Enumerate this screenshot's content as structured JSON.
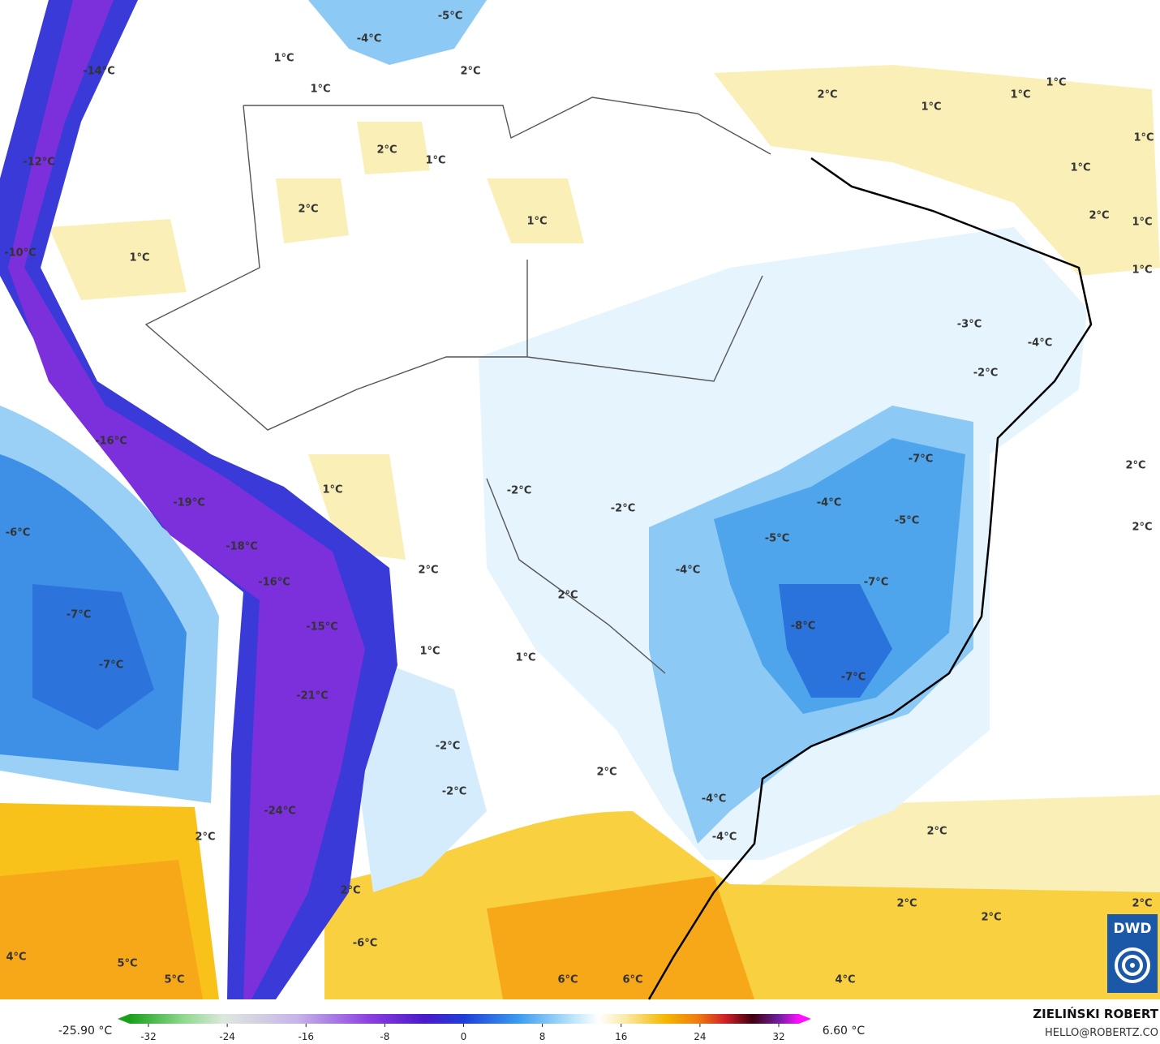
{
  "map": {
    "labels": [
      "-5°C",
      "-4°C",
      "1°C",
      "2°C",
      "1°C",
      "-14°C",
      "2°C",
      "1°C",
      "1°C",
      "1°C",
      "2°C",
      "1°C",
      "-12°C",
      "1°C",
      "1°C",
      "2°C",
      "1°C",
      "2°C",
      "1°C",
      "-10°C",
      "1°C",
      "1°C",
      "-3°C",
      "-4°C",
      "-2°C",
      "-16°C",
      "-7°C",
      "2°C",
      "1°C",
      "-2°C",
      "-19°C",
      "-2°C",
      "-4°C",
      "-5°C",
      "-6°C",
      "2°C",
      "-5°C",
      "-18°C",
      "-4°C",
      "2°C",
      "-16°C",
      "-7°C",
      "2°C",
      "-7°C",
      "-15°C",
      "-8°C",
      "1°C",
      "1°C",
      "-7°C",
      "-7°C",
      "-21°C",
      "-2°C",
      "2°C",
      "-2°C",
      "-4°C",
      "-24°C",
      "2°C",
      "2°C",
      "-4°C",
      "2°C",
      "2°C",
      "2°C",
      "2°C",
      "-6°C",
      "4°C",
      "5°C",
      "5°C",
      "6°C",
      "6°C",
      "4°C"
    ]
  },
  "colorbar": {
    "min_label": "-25.90 °C",
    "max_label": "6.60 °C",
    "ticks": [
      -32,
      -24,
      -16,
      -8,
      0,
      8,
      16,
      24,
      32
    ]
  },
  "credit": {
    "author": "ZIELIŃSKI ROBERT",
    "email": "HELLO@ROBERTZ.CO"
  },
  "logo": "DWD"
}
